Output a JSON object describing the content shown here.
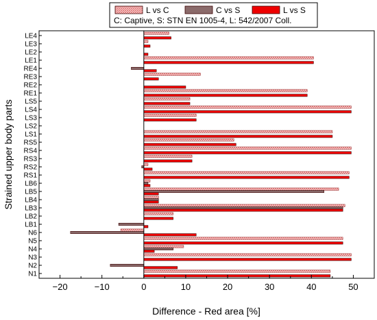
{
  "chart_data": {
    "type": "bar",
    "orientation": "horizontal",
    "xlabel": "Difference - Red area [%]",
    "ylabel": "Strained upper body parts",
    "xlim": [
      -25,
      55
    ],
    "xticks": [
      -20,
      -10,
      0,
      10,
      20,
      30,
      40,
      50
    ],
    "grid": false,
    "legend_position": "top-right",
    "legend_note": "C: Captive, S: STN EN 1005-4, L: 542/2007 Coll.",
    "categories": [
      "LE4",
      "LE3",
      "LE2",
      "LE1",
      "RE4",
      "RE3",
      "RE2",
      "RE1",
      "LS5",
      "LS4",
      "LS3",
      "LS2",
      "LS1",
      "RS5",
      "RS4",
      "RS3",
      "RS2",
      "RS1",
      "LB6",
      "LB5",
      "LB4",
      "LB3",
      "LB2",
      "LB1",
      "N6",
      "N5",
      "N4",
      "N3",
      "N2",
      "N1"
    ],
    "series": [
      {
        "name": "L vs C",
        "color": "#f08a8a",
        "pattern": "crosshatch",
        "values": [
          6,
          1,
          0,
          40.5,
          0,
          13.5,
          0,
          39,
          11,
          49.5,
          12.5,
          0,
          45,
          21.5,
          49.5,
          11.5,
          1,
          49,
          1.5,
          46.5,
          3.5,
          48,
          7,
          0,
          -5.5,
          47.5,
          9.5,
          49.5,
          0,
          44.5
        ]
      },
      {
        "name": "C vs S",
        "color": "#8b6b6b",
        "pattern": "solid",
        "values": [
          0,
          0,
          0,
          0,
          -3,
          0,
          0,
          0,
          0,
          0,
          0,
          0,
          0,
          0,
          0,
          0,
          -0.5,
          0,
          1,
          43,
          3.5,
          47.5,
          0,
          -6,
          -17.5,
          0,
          7,
          0,
          -8,
          0
        ]
      },
      {
        "name": "L vs S",
        "color": "#ee0000",
        "pattern": "solid",
        "values": [
          6.5,
          1.5,
          1,
          40.5,
          3,
          3.5,
          10,
          39,
          11,
          49.5,
          12.5,
          0,
          45,
          22,
          49.5,
          11.5,
          2,
          49,
          1.5,
          3.5,
          3.5,
          47.5,
          7,
          1,
          12.5,
          47.5,
          2.5,
          49.5,
          8,
          44.5
        ]
      }
    ]
  }
}
